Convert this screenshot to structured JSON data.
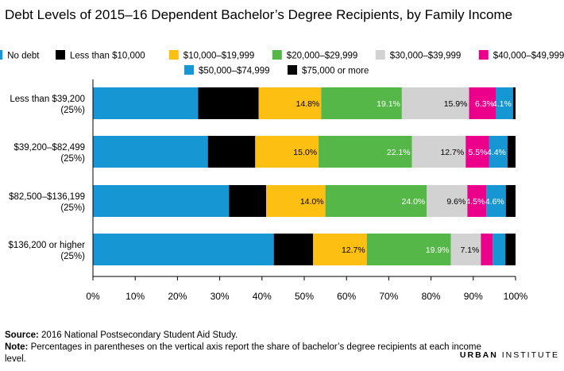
{
  "title": "Debt Levels of 2015–16 Dependent Bachelor’s Degree Recipients, by Family Income",
  "source_label": "Source:",
  "source_text": "2016 National Postsecondary Student Aid Study.",
  "note_label": "Note:",
  "note_text": "Percentages in parentheses on the vertical axis report the share of bachelor’s degree recipients at each income level.",
  "logo_bold": "URBAN",
  "logo_text": "INSTITUTE",
  "chart_data": {
    "type": "bar",
    "orientation": "horizontal",
    "stacked": true,
    "title": "Debt Levels of 2015–16 Dependent Bachelor’s Degree Recipients, by Family Income",
    "xlim": [
      0,
      100
    ],
    "x_ticks": [
      "0%",
      "10%",
      "20%",
      "30%",
      "40%",
      "50%",
      "60%",
      "70%",
      "80%",
      "90%",
      "100%"
    ],
    "grid": false,
    "legend_position": "top",
    "categories": [
      {
        "label": "Less than $39,200",
        "sublabel": "(25%)"
      },
      {
        "label": "$39,200–$82,499",
        "sublabel": "(25%)"
      },
      {
        "label": "$82,500–$136,199",
        "sublabel": "(25%)"
      },
      {
        "label": "$136,200 or higher",
        "sublabel": "(25%)"
      }
    ],
    "series": [
      {
        "name": "No debt",
        "color": "#1696d2",
        "values": [
          24.9,
          27.2,
          32.2,
          42.8
        ],
        "labels": [
          "",
          "",
          "",
          ""
        ],
        "label_color": "#ffffff"
      },
      {
        "name": "Less than $10,000",
        "color": "#000000",
        "values": [
          14.3,
          11.2,
          8.8,
          9.3
        ],
        "labels": [
          "",
          "",
          "",
          ""
        ],
        "label_color": "#ffffff"
      },
      {
        "name": "$10,000–$19,999",
        "color": "#fdbf11",
        "values": [
          14.8,
          15.0,
          14.0,
          12.7
        ],
        "labels": [
          "14.8%",
          "15.0%",
          "14.0%",
          "12.7%"
        ],
        "label_color": "#000000"
      },
      {
        "name": "$20,000–$29,999",
        "color": "#55b748",
        "values": [
          19.1,
          22.1,
          24.0,
          19.9
        ],
        "labels": [
          "19.1%",
          "22.1%",
          "24.0%",
          "19.9%"
        ],
        "label_color": "#ffffff"
      },
      {
        "name": "$30,000–$39,999",
        "color": "#d2d2d2",
        "values": [
          15.9,
          12.7,
          9.6,
          7.1
        ],
        "labels": [
          "15.9%",
          "12.7%",
          "9.6%",
          "7.1%"
        ],
        "label_color": "#000000"
      },
      {
        "name": "$40,000–$49,999",
        "color": "#ec008b",
        "values": [
          6.3,
          5.5,
          4.5,
          2.8
        ],
        "labels": [
          "6.3%",
          "5.5%",
          "4.5%",
          ""
        ],
        "label_color": "#ffffff"
      },
      {
        "name": "$50,000–$74,999",
        "color": "#1696d2",
        "values": [
          4.1,
          4.4,
          4.6,
          3.0
        ],
        "labels": [
          "4.1%",
          "4.4%",
          "4.6%",
          ""
        ],
        "label_color": "#ffffff"
      },
      {
        "name": "$75,000 or more",
        "color": "#000000",
        "values": [
          0.6,
          1.9,
          2.3,
          2.4
        ],
        "labels": [
          "",
          "",
          "",
          ""
        ],
        "label_color": "#ffffff"
      }
    ]
  }
}
